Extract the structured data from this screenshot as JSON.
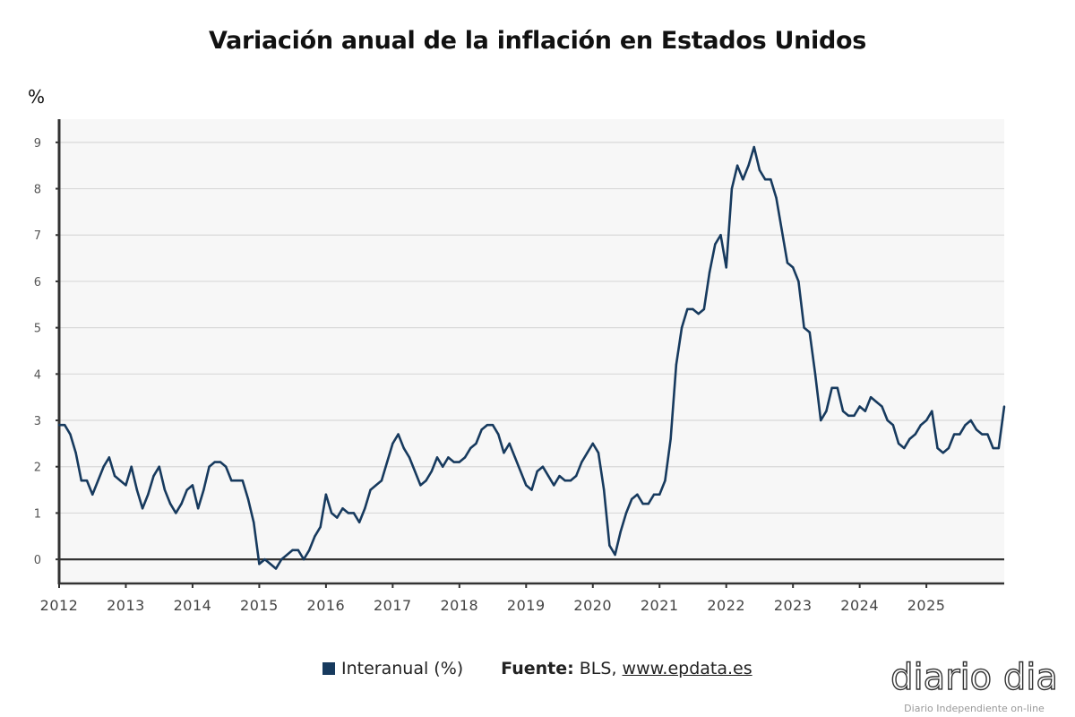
{
  "title": "Variación anual de la inflación en Estados Unidos",
  "unit_label": "%",
  "legend": {
    "series_label": "Interanual (%)",
    "source_prefix": "Fuente:",
    "source_text": "BLS,",
    "source_link": "www.epdata.es"
  },
  "logo": {
    "brand": "diario dia",
    "tagline": "Diario Independiente on-line"
  },
  "colors": {
    "line": "#173a5e",
    "plot_bg": "#f7f7f7",
    "grid": "#d9d9d9",
    "axis": "#333333"
  },
  "chart_data": {
    "type": "line",
    "title": "Variación anual de la inflación en Estados Unidos",
    "xlabel": "",
    "ylabel": "%",
    "ylim": [
      -0.52,
      9.5
    ],
    "yticks": [
      0,
      1,
      2,
      3,
      4,
      5,
      6,
      7,
      8,
      9
    ],
    "xticks": [
      "2012",
      "2013",
      "2014",
      "2015",
      "2016",
      "2017",
      "2018",
      "2019",
      "2020",
      "2021",
      "2022",
      "2023",
      "2024",
      "2025"
    ],
    "x_start": "2012-01",
    "frequency": "monthly",
    "grid": true,
    "legend_position": "bottom-center",
    "series": [
      {
        "name": "Interanual (%)",
        "values": [
          2.9,
          2.9,
          2.7,
          2.3,
          1.7,
          1.7,
          1.4,
          1.7,
          2.0,
          2.2,
          1.8,
          1.7,
          1.6,
          2.0,
          1.5,
          1.1,
          1.4,
          1.8,
          2.0,
          1.5,
          1.2,
          1.0,
          1.2,
          1.5,
          1.6,
          1.1,
          1.5,
          2.0,
          2.1,
          2.1,
          2.0,
          1.7,
          1.7,
          1.7,
          1.3,
          0.8,
          -0.1,
          0.0,
          -0.1,
          -0.2,
          0.0,
          0.1,
          0.2,
          0.2,
          0.0,
          0.2,
          0.5,
          0.7,
          1.4,
          1.0,
          0.9,
          1.1,
          1.0,
          1.0,
          0.8,
          1.1,
          1.5,
          1.6,
          1.7,
          2.1,
          2.5,
          2.7,
          2.4,
          2.2,
          1.9,
          1.6,
          1.7,
          1.9,
          2.2,
          2.0,
          2.2,
          2.1,
          2.1,
          2.2,
          2.4,
          2.5,
          2.8,
          2.9,
          2.9,
          2.7,
          2.3,
          2.5,
          2.2,
          1.9,
          1.6,
          1.5,
          1.9,
          2.0,
          1.8,
          1.6,
          1.8,
          1.7,
          1.7,
          1.8,
          2.1,
          2.3,
          2.5,
          2.3,
          1.5,
          0.3,
          0.1,
          0.6,
          1.0,
          1.3,
          1.4,
          1.2,
          1.2,
          1.4,
          1.4,
          1.7,
          2.6,
          4.2,
          5.0,
          5.4,
          5.4,
          5.3,
          5.4,
          6.2,
          6.8,
          7.0,
          6.3,
          8.0,
          8.5,
          8.2,
          8.5,
          8.9,
          8.4,
          8.2,
          8.2,
          7.8,
          7.1,
          6.4,
          6.3,
          6.0,
          5.0,
          4.9,
          4.0,
          3.0,
          3.2,
          3.7,
          3.7,
          3.2,
          3.1,
          3.1,
          3.3,
          3.2,
          3.5,
          3.4,
          3.3,
          3.0,
          2.9,
          2.5,
          2.4,
          2.6,
          2.7,
          2.9,
          3.0,
          3.2,
          2.4,
          2.3,
          2.4,
          2.7,
          2.7,
          2.9,
          3.0,
          2.8,
          2.7,
          2.7,
          2.4,
          2.4,
          3.3
        ]
      }
    ]
  }
}
